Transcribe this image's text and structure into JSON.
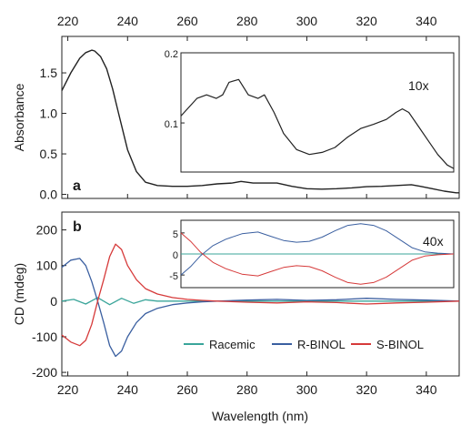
{
  "figure": {
    "shared_xlabel": "Wavelength (nm)",
    "top_x_ticks": [
      "220",
      "240",
      "260",
      "280",
      "300",
      "320",
      "340"
    ],
    "bottom_x_ticks": [
      "220",
      "240",
      "260",
      "280",
      "300",
      "320",
      "340"
    ]
  },
  "chart_data": [
    {
      "id": "panel-a",
      "type": "line",
      "panel_label": "a",
      "ylabel": "Absorbance",
      "xlim": [
        218,
        351
      ],
      "ylim": [
        -0.05,
        1.95
      ],
      "x_ticks": [
        220,
        240,
        260,
        280,
        300,
        320,
        340
      ],
      "y_ticks": [
        0.0,
        0.5,
        1.0,
        1.5
      ],
      "y_tick_labels": [
        "0.0",
        "0.5",
        "1.0",
        "1.5"
      ],
      "grid": false,
      "series": [
        {
          "color": "#222222",
          "x": [
            218,
            221,
            224,
            226,
            228,
            229,
            231,
            233,
            235,
            237,
            240,
            243,
            246,
            250,
            255,
            260,
            265,
            270,
            275,
            278,
            282,
            286,
            290,
            295,
            300,
            305,
            310,
            315,
            320,
            325,
            330,
            335,
            338,
            342,
            346,
            350,
            351
          ],
          "y": [
            1.28,
            1.5,
            1.68,
            1.75,
            1.78,
            1.77,
            1.7,
            1.55,
            1.3,
            1.0,
            0.55,
            0.28,
            0.15,
            0.11,
            0.1,
            0.1,
            0.11,
            0.13,
            0.14,
            0.16,
            0.14,
            0.14,
            0.14,
            0.1,
            0.07,
            0.065,
            0.07,
            0.08,
            0.095,
            0.1,
            0.11,
            0.12,
            0.1,
            0.07,
            0.04,
            0.02,
            0.02
          ]
        }
      ],
      "inset": {
        "label": "10x",
        "xlim": [
          266,
          351
        ],
        "ylim": [
          0.03,
          0.2
        ],
        "y_ticks": [
          0.1,
          0.2
        ],
        "y_tick_labels": [
          "0.1",
          "0.2"
        ],
        "series": [
          {
            "color": "#222222",
            "x": [
              266,
              268,
              271,
              274,
              277,
              279,
              281,
              284,
              287,
              290,
              292,
              295,
              298,
              302,
              306,
              310,
              314,
              318,
              322,
              326,
              330,
              333,
              335,
              337,
              340,
              343,
              346,
              349,
              351
            ],
            "y": [
              0.11,
              0.12,
              0.135,
              0.14,
              0.135,
              0.14,
              0.158,
              0.162,
              0.14,
              0.135,
              0.14,
              0.115,
              0.085,
              0.062,
              0.055,
              0.058,
              0.065,
              0.08,
              0.092,
              0.098,
              0.105,
              0.115,
              0.12,
              0.115,
              0.095,
              0.075,
              0.055,
              0.04,
              0.035
            ]
          }
        ]
      }
    },
    {
      "id": "panel-b",
      "type": "line",
      "panel_label": "b",
      "ylabel": "CD (mdeg)",
      "xlim": [
        218,
        351
      ],
      "ylim": [
        -210,
        250
      ],
      "x_ticks": [
        220,
        240,
        260,
        280,
        300,
        320,
        340
      ],
      "y_ticks": [
        -200,
        -100,
        0,
        100,
        200
      ],
      "y_tick_labels": [
        "-200",
        "-100",
        "0",
        "100",
        "200"
      ],
      "grid": false,
      "legend_position": "bottom-right",
      "series": [
        {
          "name": "Racemic",
          "color": "#3aa59a",
          "x": [
            218,
            222,
            226,
            230,
            234,
            238,
            242,
            246,
            250,
            260,
            270,
            280,
            290,
            300,
            310,
            320,
            330,
            340,
            351
          ],
          "y": [
            0,
            5,
            -8,
            10,
            -10,
            8,
            -6,
            4,
            0,
            0,
            0,
            0,
            0,
            0,
            0,
            0,
            0,
            0,
            0
          ]
        },
        {
          "name": "R-BINOL",
          "color": "#3a5fa0",
          "x": [
            218,
            221,
            224,
            226,
            228,
            230,
            232,
            234,
            236,
            238,
            240,
            243,
            246,
            250,
            255,
            260,
            265,
            270,
            280,
            290,
            300,
            310,
            320,
            330,
            340,
            351
          ],
          "y": [
            95,
            115,
            120,
            100,
            55,
            0,
            -60,
            -125,
            -155,
            -140,
            -100,
            -60,
            -35,
            -20,
            -10,
            -5,
            -2,
            0,
            3,
            5,
            2,
            4,
            8,
            5,
            3,
            0
          ]
        },
        {
          "name": "S-BINOL",
          "color": "#d63a3a",
          "x": [
            218,
            221,
            224,
            226,
            228,
            230,
            232,
            234,
            236,
            238,
            240,
            243,
            246,
            250,
            255,
            260,
            265,
            270,
            280,
            290,
            300,
            310,
            320,
            330,
            340,
            351
          ],
          "y": [
            -95,
            -115,
            -125,
            -110,
            -65,
            0,
            60,
            125,
            160,
            145,
            100,
            60,
            35,
            20,
            10,
            5,
            2,
            0,
            -3,
            -5,
            -2,
            -4,
            -8,
            -5,
            -3,
            0
          ]
        }
      ],
      "inset": {
        "label": "40x",
        "xlim": [
          266,
          351
        ],
        "ylim": [
          -8,
          8
        ],
        "y_ticks": [
          -5,
          0,
          5
        ],
        "y_tick_labels": [
          "-5",
          "0",
          "5"
        ],
        "series": [
          {
            "name": "Racemic",
            "color": "#3aa59a",
            "x": [
              266,
              280,
              300,
              320,
              340,
              351
            ],
            "y": [
              0,
              0,
              0,
              0,
              0,
              0
            ]
          },
          {
            "name": "R-BINOL",
            "color": "#3a5fa0",
            "x": [
              266,
              269,
              272,
              276,
              280,
              285,
              290,
              294,
              298,
              302,
              306,
              310,
              314,
              318,
              322,
              326,
              330,
              334,
              338,
              342,
              346,
              351
            ],
            "y": [
              -5,
              -3,
              -0.5,
              2,
              3.5,
              4.8,
              5.2,
              4.2,
              3.2,
              2.8,
              3.0,
              4.0,
              5.5,
              6.8,
              7.2,
              6.8,
              5.5,
              3.5,
              1.5,
              0.5,
              0.2,
              0
            ]
          },
          {
            "name": "S-BINOL",
            "color": "#d63a3a",
            "x": [
              266,
              269,
              272,
              276,
              280,
              285,
              290,
              294,
              298,
              302,
              306,
              310,
              314,
              318,
              322,
              326,
              330,
              334,
              338,
              342,
              346,
              351
            ],
            "y": [
              5,
              3,
              0.5,
              -2,
              -3.5,
              -4.8,
              -5.2,
              -4.2,
              -3.2,
              -2.8,
              -3.0,
              -4.0,
              -5.5,
              -6.8,
              -7.2,
              -6.8,
              -5.5,
              -3.5,
              -1.5,
              -0.5,
              -0.2,
              0
            ]
          }
        ]
      }
    }
  ]
}
